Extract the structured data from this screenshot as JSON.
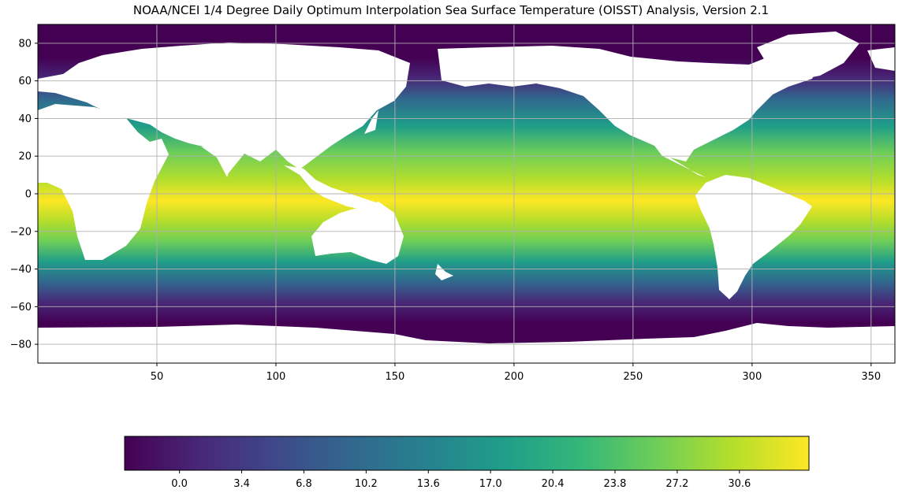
{
  "title": "NOAA/NCEI 1/4 Degree Daily Optimum Interpolation Sea Surface Temperature (OISST) Analysis, Version 2.1",
  "map": {
    "projection": "equirectangular",
    "lon_range": [
      0,
      360
    ],
    "lat_range": [
      -90,
      90
    ],
    "grid": true,
    "land_color": "#ffffff",
    "colormap": "viridis",
    "x_ticks": [
      "50",
      "100",
      "150",
      "200",
      "250",
      "300",
      "350"
    ],
    "y_ticks": [
      "80",
      "60",
      "40",
      "20",
      "0",
      "−20",
      "−40",
      "−60",
      "−80"
    ]
  },
  "colorbar": {
    "orientation": "horizontal",
    "range": [
      -3.0,
      34.4
    ],
    "ticks": [
      "0.0",
      "3.4",
      "6.8",
      "10.2",
      "13.6",
      "17.0",
      "20.4",
      "23.8",
      "27.2",
      "30.6"
    ]
  },
  "colors": {
    "viridis": [
      "#440154",
      "#482878",
      "#3e4989",
      "#31688e",
      "#26828e",
      "#1f9e89",
      "#35b779",
      "#6ece58",
      "#b5de2b",
      "#fde725"
    ],
    "grid": "#b0b0b0"
  }
}
